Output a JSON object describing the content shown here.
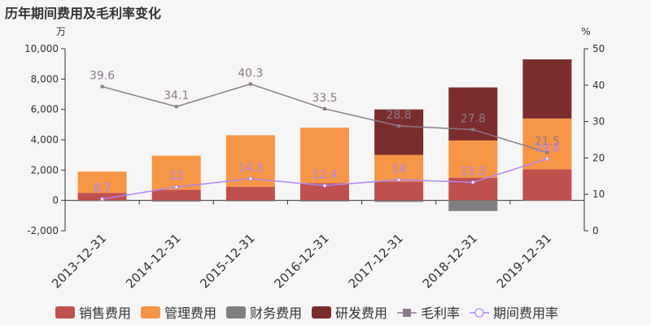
{
  "title": "历年期间费用及毛利率变化",
  "chart_data": {
    "type": "bar",
    "stacked": true,
    "categories": [
      "2013-12-31",
      "2014-12-31",
      "2015-12-31",
      "2016-12-31",
      "2017-12-31",
      "2018-12-31",
      "2019-12-31"
    ],
    "left_axis": {
      "unit": "万",
      "ylim": [
        -2000,
        10000
      ],
      "ticks": [
        "-2,000",
        "0",
        "2,000",
        "4,000",
        "6,000",
        "8,000",
        "10,000"
      ]
    },
    "right_axis": {
      "unit": "%",
      "ylim": [
        0,
        50
      ],
      "ticks": [
        "0",
        "10",
        "20",
        "30",
        "40",
        "50"
      ]
    },
    "bar_series": [
      {
        "name": "销售费用",
        "color": "#c0504d",
        "values": [
          500,
          700,
          900,
          1150,
          1250,
          1500,
          2050
        ]
      },
      {
        "name": "管理费用",
        "color": "#f79646",
        "values": [
          1400,
          2250,
          3400,
          3650,
          1750,
          2450,
          3350
        ]
      },
      {
        "name": "财务费用",
        "color": "#7f7f7f",
        "values": [
          -50,
          -80,
          -60,
          -70,
          -100,
          -700,
          -30
        ]
      },
      {
        "name": "研发费用",
        "color": "#7b2c2c",
        "values": [
          0,
          0,
          0,
          0,
          3000,
          3500,
          3900
        ]
      }
    ],
    "line_series": [
      {
        "name": "毛利率",
        "color": "#8c7a8a",
        "marker": "square",
        "values": [
          39.6,
          34.1,
          40.3,
          33.5,
          28.8,
          27.8,
          21.5
        ],
        "labels": [
          "39.6",
          "34.1",
          "40.3",
          "33.5",
          "28.8",
          "27.8",
          "21.5"
        ]
      },
      {
        "name": "期间费用率",
        "color": "#b185f0",
        "marker": "circle",
        "values": [
          8.7,
          12,
          14.3,
          12.4,
          14,
          13.3,
          19.8
        ],
        "labels": [
          "8.7",
          "12",
          "14.3",
          "12.4",
          "14",
          "13.3",
          "19.8"
        ]
      }
    ],
    "grid": false,
    "legend_position": "bottom"
  }
}
